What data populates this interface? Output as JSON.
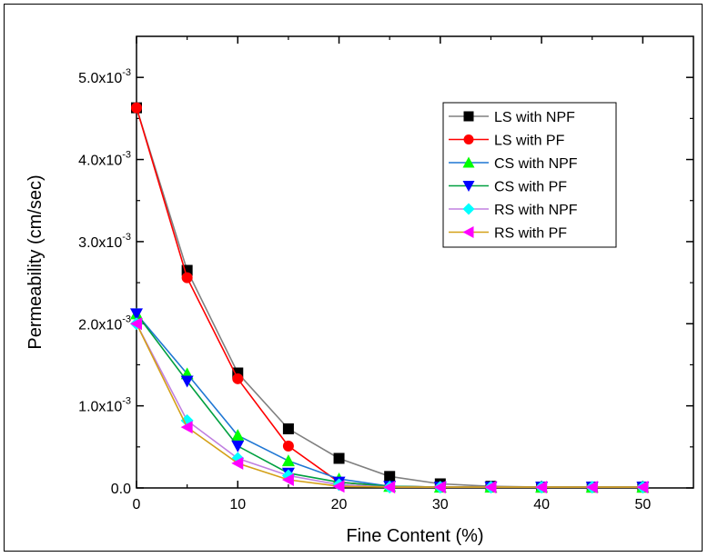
{
  "chart_data": {
    "type": "line",
    "xlabel": "Fine Content (%)",
    "ylabel": "Permeability (cm/sec)",
    "xlim": [
      0,
      55
    ],
    "ylim": [
      0,
      0.0055
    ],
    "x_ticks": [
      0,
      10,
      20,
      30,
      40,
      50
    ],
    "x_tick_labels": [
      "0",
      "10",
      "20",
      "30",
      "40",
      "50"
    ],
    "y_ticks": [
      0,
      0.001,
      0.002,
      0.003,
      0.004,
      0.005
    ],
    "y_tick_labels": [
      {
        "base": "0.0",
        "exp": ""
      },
      {
        "base": "1.0x10",
        "exp": "-3"
      },
      {
        "base": "2.0x10",
        "exp": "-3"
      },
      {
        "base": "3.0x10",
        "exp": "-3"
      },
      {
        "base": "4.0x10",
        "exp": "-3"
      },
      {
        "base": "5.0x10",
        "exp": "-3"
      }
    ],
    "legend_position": "top-right",
    "grid": false,
    "x": [
      0,
      5,
      10,
      15,
      20,
      25,
      30,
      35,
      40,
      45,
      50
    ],
    "series": [
      {
        "name": "LS with NPF",
        "color": "#808080",
        "marker": "square",
        "marker_color": "#000000",
        "values": [
          0.00463,
          0.00265,
          0.0014,
          0.00072,
          0.00036,
          0.00014,
          5e-05,
          2e-05,
          1e-05,
          1e-05,
          1e-05
        ]
      },
      {
        "name": "LS with PF",
        "color": "#ff0000",
        "marker": "circle",
        "marker_color": "#ff0000",
        "values": [
          0.00463,
          0.00256,
          0.00133,
          0.00051,
          7e-05,
          2e-05,
          1e-05,
          1e-05,
          1e-05,
          1e-05,
          1e-05
        ]
      },
      {
        "name": "CS with NPF",
        "color": "#1f77d4",
        "marker": "triangle-up",
        "marker_color": "#00ff00",
        "values": [
          0.00212,
          0.00139,
          0.00064,
          0.00033,
          0.00011,
          2e-05,
          1e-05,
          1e-05,
          1e-05,
          1e-05,
          1e-05
        ]
      },
      {
        "name": "CS with PF",
        "color": "#00a040",
        "marker": "triangle-down",
        "marker_color": "#0000ff",
        "values": [
          0.00212,
          0.0013,
          0.00051,
          0.00018,
          7e-05,
          2e-05,
          1e-05,
          1e-05,
          1e-05,
          1e-05,
          1e-05
        ]
      },
      {
        "name": "RS with NPF",
        "color": "#c080e0",
        "marker": "diamond",
        "marker_color": "#00ffff",
        "values": [
          0.002,
          0.00082,
          0.00036,
          0.00015,
          4e-05,
          1e-05,
          1e-05,
          1e-05,
          1e-05,
          1e-05,
          1e-05
        ]
      },
      {
        "name": "RS with PF",
        "color": "#d4a017",
        "marker": "triangle-left",
        "marker_color": "#ff00ff",
        "values": [
          0.002,
          0.00074,
          0.0003,
          0.0001,
          2e-05,
          1e-05,
          1e-05,
          1e-05,
          1e-05,
          1e-05,
          1e-05
        ]
      }
    ]
  }
}
